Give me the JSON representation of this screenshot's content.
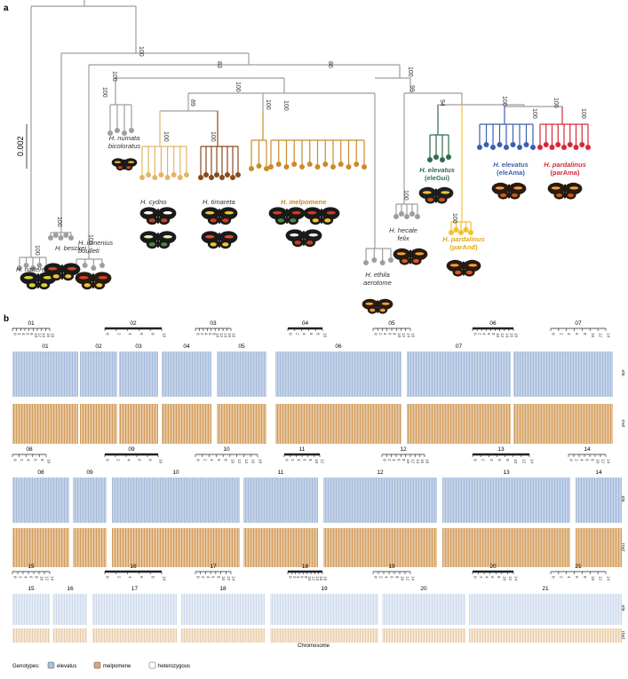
{
  "panel_a": {
    "label": "a",
    "scale_bar": "0.002",
    "bootstrap_values": [
      "100",
      "83",
      "86",
      "100",
      "100",
      "100",
      "100",
      "89",
      "100",
      "100",
      "100",
      "100",
      "99",
      "94",
      "100",
      "100",
      "100",
      "100",
      "100",
      "100",
      "100",
      "100",
      "100"
    ],
    "taxa": [
      {
        "line1": "H. nattereri",
        "line2": ""
      },
      {
        "line1": "H. besckei",
        "line2": ""
      },
      {
        "line1": "H. ismenius",
        "line2": "boulleti"
      },
      {
        "line1": "H. numata",
        "line2": "bicoloratus"
      },
      {
        "line1": "H. cydno",
        "line2": ""
      },
      {
        "line1": "H. timareta",
        "line2": ""
      },
      {
        "line1": "H. melpomene",
        "line2": ""
      },
      {
        "line1": "H. ethila",
        "line2": "aerotome"
      },
      {
        "line1": "H. hecale",
        "line2": "felix"
      },
      {
        "line1": "H. elevatus",
        "line2": "(eleGui)"
      },
      {
        "line1": "H. pardalinus",
        "line2": "(parAnd)"
      },
      {
        "line1": "H. elevatus",
        "line2": "(eleAma)"
      },
      {
        "line1": "H. pardalinus",
        "line2": "(parAma)"
      }
    ],
    "colors": {
      "grey": "#9e9e9e",
      "cydno": "#e3b566",
      "timareta": "#8a4a1c",
      "melpomene": "#c98b2b",
      "eleGui": "#2e6b4f",
      "parAnd": "#f2c12e",
      "eleAma": "#3b5fb0",
      "parAma": "#d6283a"
    }
  },
  "panel_b": {
    "label": "b",
    "chromosomes": [
      "01",
      "02",
      "03",
      "04",
      "05",
      "06",
      "07",
      "08",
      "09",
      "10",
      "11",
      "12",
      "13",
      "14",
      "15",
      "16",
      "17",
      "18",
      "19",
      "20",
      "21"
    ],
    "row_labels": [
      "ele",
      "mel"
    ],
    "x_title": "Chromosome",
    "legend": {
      "title": "Genotypes:",
      "items": [
        {
          "label": "elevatus",
          "color": "#a9bfdd"
        },
        {
          "label": "melpomene",
          "color": "#d9ab72"
        },
        {
          "label": "heterozygous",
          "color": "#ffffff"
        }
      ]
    }
  }
}
